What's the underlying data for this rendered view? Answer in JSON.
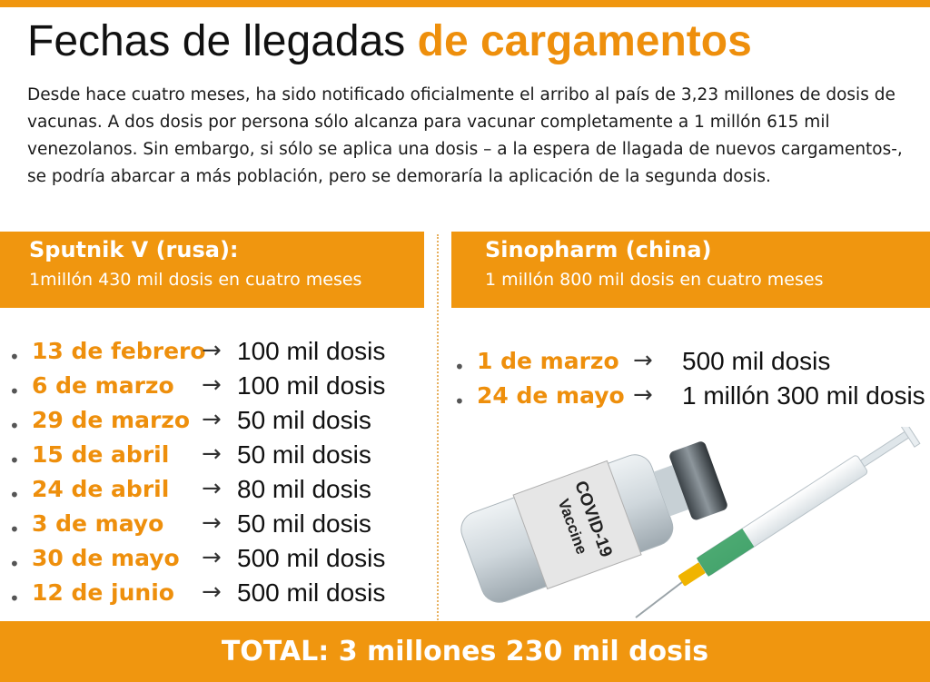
{
  "title": {
    "main": "Fechas de llegadas",
    "accent": "de cargamentos"
  },
  "intro": "Desde hace cuatro meses, ha sido notificado oficialmente el arribo al país de 3,23 millones de dosis de vacunas. A dos dosis por persona sólo alcanza para vacunar completamente a 1 millón 615 mil venezolanos. Sin embargo, si sólo se aplica una dosis – a la espera de llagada de nuevos cargamentos-, se podría abarcar a más población, pero se demoraría la aplicación de la segunda dosis.",
  "sputnik": {
    "name": "Sputnik V (rusa):",
    "subtitle": "1millón 430 mil dosis en cuatro meses",
    "shipments": [
      {
        "date": "13 de febrero",
        "doses": "100 mil dosis"
      },
      {
        "date": "6 de marzo",
        "doses": "100 mil dosis"
      },
      {
        "date": "29 de marzo",
        "doses": "50 mil dosis"
      },
      {
        "date": "15 de abril",
        "doses": "50 mil dosis"
      },
      {
        "date": "24 de abril",
        "doses": "80 mil dosis"
      },
      {
        "date": "3 de mayo",
        "doses": "50 mil dosis"
      },
      {
        "date": "30 de mayo",
        "doses": "500 mil dosis"
      },
      {
        "date": "12 de junio",
        "doses": "500 mil dosis"
      }
    ]
  },
  "sinopharm": {
    "name": "Sinopharm (china)",
    "subtitle": "1 millón 800 mil dosis en cuatro meses",
    "shipments": [
      {
        "date": "1 de marzo",
        "doses": "500 mil dosis"
      },
      {
        "date": "24 de mayo",
        "doses": "1 millón 300 mil dosis"
      }
    ]
  },
  "vial_label": {
    "line1": "Vaccine",
    "line2": "COVID-19"
  },
  "glyphs": {
    "bullet": "•",
    "arrow": "→"
  },
  "total": "TOTAL: 3 millones 230 mil dosis",
  "colors": {
    "accent": "#f0960f",
    "accent_text": "#ee8f0c"
  }
}
